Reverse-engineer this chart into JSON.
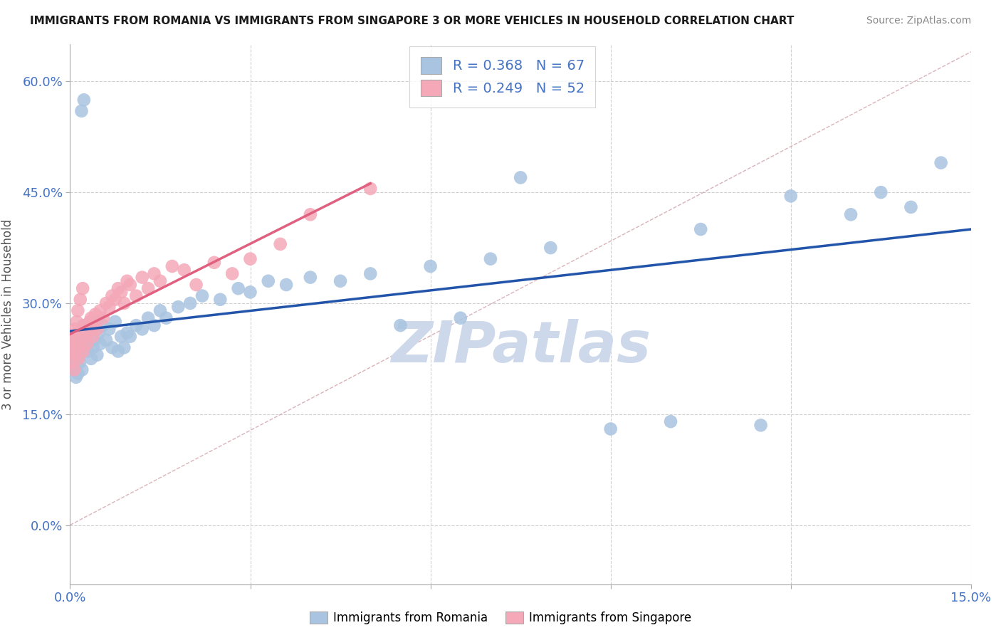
{
  "title": "IMMIGRANTS FROM ROMANIA VS IMMIGRANTS FROM SINGAPORE 3 OR MORE VEHICLES IN HOUSEHOLD CORRELATION CHART",
  "source": "Source: ZipAtlas.com",
  "ylabel": "3 or more Vehicles in Household",
  "xlim": [
    0.0,
    15.0
  ],
  "ylim": [
    -8.0,
    65.0
  ],
  "yticks": [
    0.0,
    15.0,
    30.0,
    45.0,
    60.0
  ],
  "xticks": [
    0.0,
    3.0,
    6.0,
    9.0,
    12.0,
    15.0
  ],
  "romania_R": 0.368,
  "romania_N": 67,
  "singapore_R": 0.249,
  "singapore_N": 52,
  "romania_color": "#a8c4e0",
  "singapore_color": "#f4a8b8",
  "romania_line_color": "#2255aa",
  "singapore_line_color": "#e06080",
  "ref_line_color": "#d0a0a8",
  "watermark": "ZIPatlas",
  "watermark_color": "#cdd8ea",
  "background_color": "#ffffff",
  "romania_scatter_x": [
    0.05,
    0.08,
    0.1,
    0.12,
    0.15,
    0.18,
    0.2,
    0.22,
    0.25,
    0.28,
    0.3,
    0.33,
    0.35,
    0.38,
    0.4,
    0.42,
    0.45,
    0.48,
    0.5,
    0.55,
    0.6,
    0.65,
    0.7,
    0.75,
    0.8,
    0.85,
    0.9,
    0.95,
    1.0,
    1.1,
    1.2,
    1.3,
    1.4,
    1.5,
    1.6,
    1.8,
    2.0,
    2.2,
    2.5,
    2.8,
    3.0,
    3.3,
    3.6,
    4.0,
    4.5,
    5.0,
    5.5,
    6.0,
    6.5,
    7.0,
    7.5,
    8.0,
    9.0,
    10.0,
    10.5,
    11.5,
    12.0,
    13.0,
    13.5,
    14.0,
    14.5,
    0.06,
    0.09,
    0.13,
    0.16,
    0.19,
    0.23
  ],
  "romania_scatter_y": [
    22.0,
    24.0,
    20.0,
    25.0,
    23.0,
    26.0,
    21.0,
    27.0,
    24.5,
    25.5,
    23.5,
    26.5,
    22.5,
    24.0,
    25.0,
    27.5,
    23.0,
    26.0,
    24.5,
    27.0,
    25.0,
    26.5,
    24.0,
    27.5,
    23.5,
    25.5,
    24.0,
    26.0,
    25.5,
    27.0,
    26.5,
    28.0,
    27.0,
    29.0,
    28.0,
    29.5,
    30.0,
    31.0,
    30.5,
    32.0,
    31.5,
    33.0,
    32.5,
    33.5,
    33.0,
    34.0,
    27.0,
    35.0,
    28.0,
    36.0,
    47.0,
    37.5,
    13.0,
    14.0,
    40.0,
    13.5,
    44.5,
    42.0,
    45.0,
    43.0,
    49.0,
    21.0,
    23.0,
    20.5,
    22.0,
    56.0,
    57.5
  ],
  "singapore_scatter_x": [
    0.03,
    0.05,
    0.07,
    0.09,
    0.1,
    0.12,
    0.14,
    0.16,
    0.18,
    0.2,
    0.22,
    0.25,
    0.28,
    0.3,
    0.33,
    0.35,
    0.38,
    0.4,
    0.42,
    0.45,
    0.5,
    0.55,
    0.6,
    0.65,
    0.7,
    0.75,
    0.8,
    0.85,
    0.9,
    0.95,
    1.0,
    1.1,
    1.2,
    1.3,
    1.4,
    1.5,
    1.7,
    1.9,
    2.1,
    2.4,
    2.7,
    3.0,
    3.5,
    4.0,
    5.0,
    0.04,
    0.06,
    0.08,
    0.11,
    0.13,
    0.17,
    0.21
  ],
  "singapore_scatter_y": [
    22.0,
    24.5,
    21.0,
    23.0,
    25.5,
    26.0,
    22.5,
    24.0,
    25.0,
    26.5,
    23.5,
    27.0,
    24.5,
    26.0,
    27.5,
    28.0,
    25.5,
    27.0,
    28.5,
    26.5,
    29.0,
    28.0,
    30.0,
    29.5,
    31.0,
    30.5,
    32.0,
    31.5,
    30.0,
    33.0,
    32.5,
    31.0,
    33.5,
    32.0,
    34.0,
    33.0,
    35.0,
    34.5,
    32.5,
    35.5,
    34.0,
    36.0,
    38.0,
    42.0,
    45.5,
    23.5,
    25.0,
    26.5,
    27.5,
    29.0,
    30.5,
    32.0
  ]
}
